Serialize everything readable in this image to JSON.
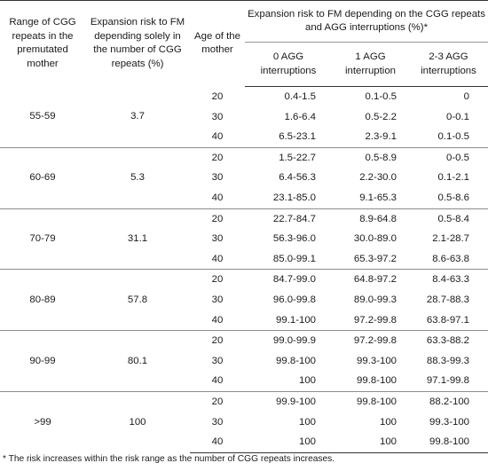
{
  "header": {
    "range": "Range of CGG repeats in the premutated mother",
    "risk_solely": "Expansion risk to FM depending solely in the number of CGG repeats (%)",
    "age": "Age of the mother",
    "agg_group": "Expansion risk to FM depending on the CGG repeats and AGG interruptions (%)*",
    "agg0": "0 AGG interruptions",
    "agg1": "1 AGG interruption",
    "agg23": "2-3 AGG interruptions"
  },
  "groups": [
    {
      "range": "55-59",
      "risk": "3.7",
      "rows": [
        {
          "age": "20",
          "agg0": "0.4-1.5",
          "agg1": "0.1-0.5",
          "agg23": "0"
        },
        {
          "age": "30",
          "agg0": "1.6-6.4",
          "agg1": "0.5-2.2",
          "agg23": "0-0.1"
        },
        {
          "age": "40",
          "agg0": "6.5-23.1",
          "agg1": "2.3-9.1",
          "agg23": "0.1-0.5"
        }
      ]
    },
    {
      "range": "60-69",
      "risk": "5.3",
      "rows": [
        {
          "age": "20",
          "agg0": "1.5-22.7",
          "agg1": "0.5-8.9",
          "agg23": "0-0.5"
        },
        {
          "age": "30",
          "agg0": "6.4-56.3",
          "agg1": "2.2-30.0",
          "agg23": "0.1-2.1"
        },
        {
          "age": "40",
          "agg0": "23.1-85.0",
          "agg1": "9.1-65.3",
          "agg23": "0.5-8.6"
        }
      ]
    },
    {
      "range": "70-79",
      "risk": "31.1",
      "rows": [
        {
          "age": "20",
          "agg0": "22.7-84.7",
          "agg1": "8.9-64.8",
          "agg23": "0.5-8.4"
        },
        {
          "age": "30",
          "agg0": "56.3-96.0",
          "agg1": "30.0-89.0",
          "agg23": "2.1-28.7"
        },
        {
          "age": "40",
          "agg0": "85.0-99.1",
          "agg1": "65.3-97.2",
          "agg23": "8.6-63.8"
        }
      ]
    },
    {
      "range": "80-89",
      "risk": "57.8",
      "rows": [
        {
          "age": "20",
          "agg0": "84.7-99.0",
          "agg1": "64.8-97.2",
          "agg23": "8.4-63.3"
        },
        {
          "age": "30",
          "agg0": "96.0-99.8",
          "agg1": "89.0-99.3",
          "agg23": "28.7-88.3"
        },
        {
          "age": "40",
          "agg0": "99.1-100",
          "agg1": "97.2-99.8",
          "agg23": "63.8-97.1"
        }
      ]
    },
    {
      "range": "90-99",
      "risk": "80.1",
      "rows": [
        {
          "age": "20",
          "agg0": "99.0-99.9",
          "agg1": "97.2-99.8",
          "agg23": "63.3-88.2"
        },
        {
          "age": "30",
          "agg0": "99.8-100",
          "agg1": "99.3-100",
          "agg23": "88.3-99.3"
        },
        {
          "age": "40",
          "agg0": "100",
          "agg1": "99.8-100",
          "agg23": "97.1-99.8"
        }
      ]
    },
    {
      "range": ">99",
      "risk": "100",
      "rows": [
        {
          "age": "20",
          "agg0": "99.9-100",
          "agg1": "99.8-100",
          "agg23": "88.2-100"
        },
        {
          "age": "30",
          "agg0": "100",
          "agg1": "100",
          "agg23": "99.3-100"
        },
        {
          "age": "40",
          "agg0": "100",
          "agg1": "100",
          "agg23": "99.8-100"
        }
      ]
    }
  ],
  "footnote": "* The risk increases within the risk range as the number of CGG repeats increases."
}
